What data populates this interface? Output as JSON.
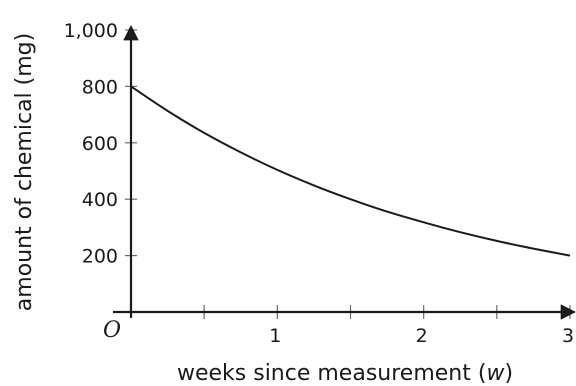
{
  "chart_data": {
    "type": "line",
    "xlabel_prefix": "weeks since measurement (",
    "xlabel_var": "w",
    "xlabel_suffix": ")",
    "ylabel": "amount of chemical (mg)",
    "origin_label": "O",
    "xlim": [
      0,
      3
    ],
    "ylim": [
      0,
      1000
    ],
    "x_ticks_major": [
      1,
      2,
      3
    ],
    "x_ticks_minor": [
      0.5,
      1.5,
      2.5
    ],
    "x_tick_labels": [
      "1",
      "2",
      "3"
    ],
    "y_ticks": [
      200,
      400,
      600,
      800,
      1000
    ],
    "y_tick_labels": [
      "200",
      "400",
      "600",
      "800",
      "1,000"
    ],
    "grid": false,
    "series": [
      {
        "x": [
          0,
          0.25,
          0.5,
          0.75,
          1,
          1.25,
          1.5,
          1.75,
          2,
          2.25,
          2.5,
          2.75,
          3
        ],
        "y": [
          800,
          713,
          635,
          566,
          504,
          449,
          400,
          356,
          318,
          283,
          252,
          225,
          200
        ]
      }
    ]
  }
}
